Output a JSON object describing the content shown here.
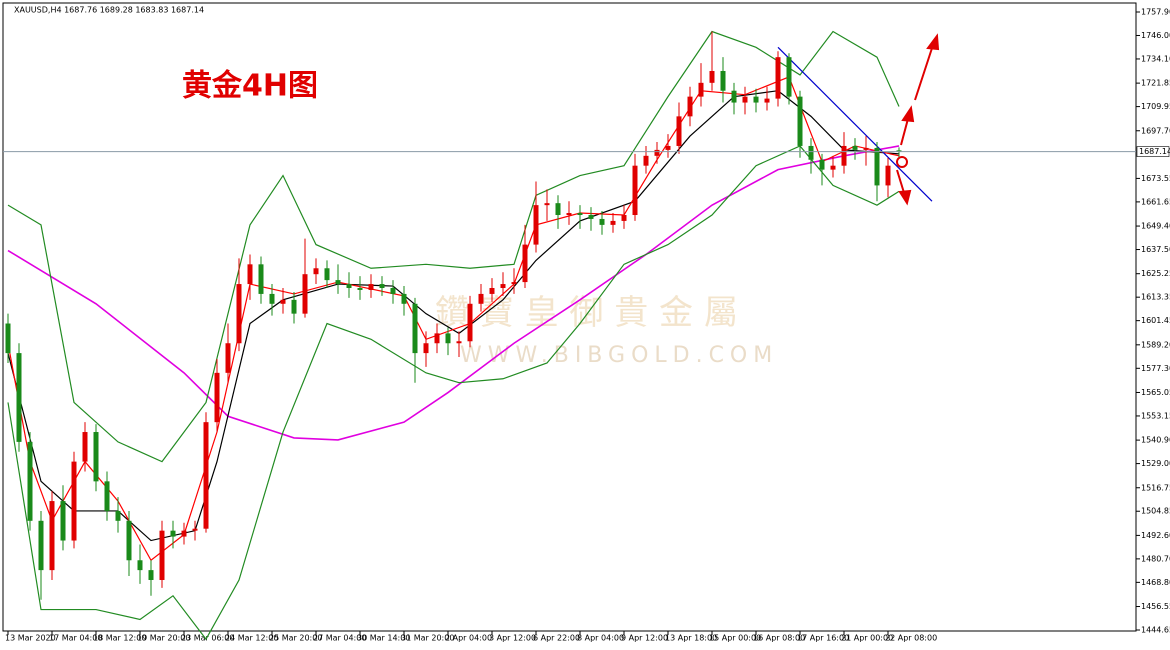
{
  "chart_data": {
    "type": "candlestick",
    "header": "XAUUSD,H4  1687.76 1689.28 1683.83 1687.14",
    "title": "黄金4H图",
    "watermark": "鑽 寶 皇 御 貴 金 屬",
    "watermark_url": "WWW.BIBGOLD.COM",
    "up_color": "#e00000",
    "down_color": "#1a8a1a",
    "open": [
      1600,
      1585,
      1540,
      1500,
      1475,
      1510,
      1490,
      1530,
      1545,
      1520,
      1505,
      1500,
      1480,
      1475,
      1470,
      1495,
      1492,
      1495,
      1496,
      1550,
      1575,
      1590,
      1620,
      1630,
      1615,
      1610,
      1612,
      1605,
      1625,
      1628,
      1622,
      1620,
      1618,
      1617,
      1620,
      1618,
      1615,
      1610,
      1585,
      1590,
      1595,
      1590,
      1591,
      1610,
      1615,
      1618,
      1620,
      1621,
      1640,
      1660,
      1661,
      1655,
      1656,
      1655,
      1653,
      1650,
      1652,
      1655,
      1680,
      1685,
      1688,
      1690,
      1705,
      1715,
      1722,
      1728,
      1718,
      1712,
      1715,
      1712,
      1714,
      1735,
      1715,
      1690,
      1683,
      1678,
      1680,
      1690,
      1688,
      1689,
      1670,
      1687.76
    ],
    "high": [
      1605,
      1590,
      1545,
      1505,
      1515,
      1518,
      1535,
      1550,
      1549,
      1525,
      1512,
      1505,
      1488,
      1480,
      1500,
      1500,
      1499,
      1500,
      1555,
      1582,
      1600,
      1633,
      1635,
      1634,
      1620,
      1618,
      1616,
      1643,
      1633,
      1632,
      1630,
      1626,
      1624,
      1625,
      1624,
      1622,
      1619,
      1613,
      1596,
      1600,
      1598,
      1596,
      1614,
      1620,
      1623,
      1626,
      1628,
      1650,
      1672,
      1668,
      1665,
      1662,
      1660,
      1659,
      1657,
      1656,
      1660,
      1686,
      1690,
      1692,
      1696,
      1712,
      1720,
      1732,
      1748,
      1735,
      1722,
      1720,
      1719,
      1720,
      1738,
      1737,
      1718,
      1694,
      1686,
      1685,
      1697,
      1694,
      1695,
      1692,
      1684,
      1689.28
    ],
    "low": [
      1580,
      1535,
      1495,
      1460,
      1470,
      1485,
      1486,
      1525,
      1515,
      1500,
      1494,
      1472,
      1468,
      1462,
      1466,
      1486,
      1488,
      1490,
      1494,
      1545,
      1570,
      1586,
      1612,
      1610,
      1604,
      1605,
      1600,
      1603,
      1620,
      1618,
      1615,
      1613,
      1612,
      1613,
      1614,
      1610,
      1604,
      1570,
      1578,
      1585,
      1584,
      1583,
      1588,
      1606,
      1611,
      1614,
      1615,
      1618,
      1636,
      1652,
      1648,
      1650,
      1648,
      1647,
      1645,
      1646,
      1648,
      1652,
      1676,
      1681,
      1684,
      1686,
      1700,
      1710,
      1718,
      1712,
      1706,
      1706,
      1707,
      1708,
      1710,
      1711,
      1684,
      1676,
      1670,
      1674,
      1676,
      1683,
      1680,
      1662,
      1664,
      1683.83
    ],
    "close": [
      1585,
      1540,
      1500,
      1475,
      1510,
      1490,
      1530,
      1545,
      1520,
      1505,
      1500,
      1480,
      1475,
      1470,
      1495,
      1492,
      1495,
      1496,
      1550,
      1575,
      1590,
      1620,
      1630,
      1615,
      1610,
      1612,
      1605,
      1625,
      1628,
      1622,
      1620,
      1618,
      1617,
      1620,
      1618,
      1615,
      1610,
      1585,
      1590,
      1595,
      1590,
      1591,
      1610,
      1615,
      1618,
      1620,
      1621,
      1640,
      1660,
      1661,
      1655,
      1656,
      1655,
      1653,
      1650,
      1652,
      1655,
      1680,
      1685,
      1688,
      1690,
      1705,
      1715,
      1722,
      1728,
      1718,
      1712,
      1715,
      1712,
      1714,
      1735,
      1715,
      1690,
      1683,
      1678,
      1680,
      1690,
      1688,
      1689,
      1670,
      1680,
      1687.14
    ],
    "x_labels": [
      "13 Mar 2020",
      "17 Mar 04:00",
      "18 Mar 12:00",
      "19 Mar 20:00",
      "23 Mar 06:00",
      "24 Mar 12:00",
      "25 Mar 20:00",
      "27 Mar 04:00",
      "30 Mar 14:00",
      "31 Mar 20:00",
      "2 Apr 04:00",
      "3 Apr 12:00",
      "6 Apr 22:00",
      "8 Apr 04:00",
      "9 Apr 12:00",
      "13 Apr 18:00",
      "15 Apr 00:00",
      "16 Apr 08:00",
      "17 Apr 16:00",
      "21 Apr 00:00",
      "22 Apr 08:00"
    ],
    "lines": [
      {
        "color": "#e000e0",
        "x": [
          0,
          8,
          16,
          20,
          26,
          30,
          36,
          40,
          46,
          52,
          58,
          64,
          70,
          76,
          81
        ],
        "values": [
          1637,
          1610,
          1575,
          1553,
          1542,
          1541,
          1550,
          1565,
          1590,
          1612,
          1635,
          1660,
          1678,
          1685,
          1690
        ]
      },
      {
        "color": "#228b22",
        "x": [
          0,
          3,
          6,
          10,
          14,
          18,
          22,
          25,
          28,
          33,
          38,
          42,
          46,
          48,
          52,
          56,
          60,
          64,
          68,
          72,
          75,
          79,
          81
        ],
        "values": [
          1660,
          1650,
          1560,
          1540,
          1530,
          1560,
          1650,
          1675,
          1640,
          1628,
          1630,
          1628,
          1630,
          1665,
          1675,
          1680,
          1715,
          1748,
          1740,
          1726,
          1748,
          1735,
          1710
        ]
      },
      {
        "color": "#228b22",
        "x": [
          0,
          3,
          8,
          12,
          15,
          18,
          21,
          25,
          29,
          33,
          38,
          41,
          45,
          49,
          52,
          56,
          60,
          64,
          68,
          72,
          75,
          79,
          81
        ],
        "values": [
          1560,
          1455,
          1455,
          1450,
          1462,
          1440,
          1470,
          1545,
          1600,
          1592,
          1575,
          1570,
          1572,
          1580,
          1600,
          1630,
          1640,
          1655,
          1680,
          1690,
          1670,
          1660,
          1667
        ]
      },
      {
        "color": "#000000",
        "x": [
          0,
          3,
          6,
          10,
          13,
          17,
          19,
          22,
          25,
          30,
          35,
          38,
          41,
          45,
          48,
          52,
          57,
          62,
          66,
          70,
          73,
          76,
          81
        ],
        "values": [
          1585,
          1520,
          1505,
          1505,
          1490,
          1495,
          1530,
          1600,
          1612,
          1620,
          1619,
          1605,
          1595,
          1612,
          1632,
          1652,
          1662,
          1695,
          1715,
          1718,
          1705,
          1688,
          1686
        ]
      },
      {
        "color": "#ff0000",
        "x": [
          0,
          2,
          4,
          7,
          10,
          13,
          16,
          19,
          22,
          26,
          30,
          36,
          38,
          42,
          46,
          48,
          52,
          56,
          59,
          63,
          67,
          71,
          74,
          77,
          81
        ],
        "values": [
          1590,
          1530,
          1500,
          1530,
          1510,
          1480,
          1493,
          1545,
          1620,
          1615,
          1621,
          1614,
          1592,
          1600,
          1620,
          1650,
          1656,
          1655,
          1683,
          1718,
          1716,
          1725,
          1682,
          1690,
          1685
        ]
      },
      {
        "color": "#0000cc",
        "x": [
          70,
          84
        ],
        "values": [
          1740,
          1662
        ]
      }
    ],
    "ylim": [
      1444.65,
      1757.9
    ],
    "yticks": [
      {
        "value": 1757.9,
        "label": "1757.90"
      },
      {
        "value": 1746,
        "label": "1746.00"
      },
      {
        "value": 1734.1,
        "label": "1734.10"
      },
      {
        "value": 1721.85,
        "label": "1721.85"
      },
      {
        "value": 1709.95,
        "label": "1709.95"
      },
      {
        "value": 1697.7,
        "label": "1697.70"
      },
      {
        "value": 1673.55,
        "label": "1673.55"
      },
      {
        "value": 1661.65,
        "label": "1661.65"
      },
      {
        "value": 1649.4,
        "label": "1649.40"
      },
      {
        "value": 1637.5,
        "label": "1637.50"
      },
      {
        "value": 1625.25,
        "label": "1625.25"
      },
      {
        "value": 1613.35,
        "label": "1613.35"
      },
      {
        "value": 1601.45,
        "label": "1601.45"
      },
      {
        "value": 1589.2,
        "label": "1589.20"
      },
      {
        "value": 1577.3,
        "label": "1577.30"
      },
      {
        "value": 1565.05,
        "label": "1565.05"
      },
      {
        "value": 1553.15,
        "label": "1553.15"
      },
      {
        "value": 1540.9,
        "label": "1540.90"
      },
      {
        "value": 1529,
        "label": "1529.00"
      },
      {
        "value": 1516.75,
        "label": "1516.75"
      },
      {
        "value": 1504.85,
        "label": "1504.85"
      },
      {
        "value": 1492.6,
        "label": "1492.60"
      },
      {
        "value": 1480.7,
        "label": "1480.70"
      },
      {
        "value": 1468.8,
        "label": "1468.80"
      },
      {
        "value": 1456.55,
        "label": "1456.55"
      },
      {
        "value": 1444.65,
        "label": "1444.65"
      }
    ]
  }
}
